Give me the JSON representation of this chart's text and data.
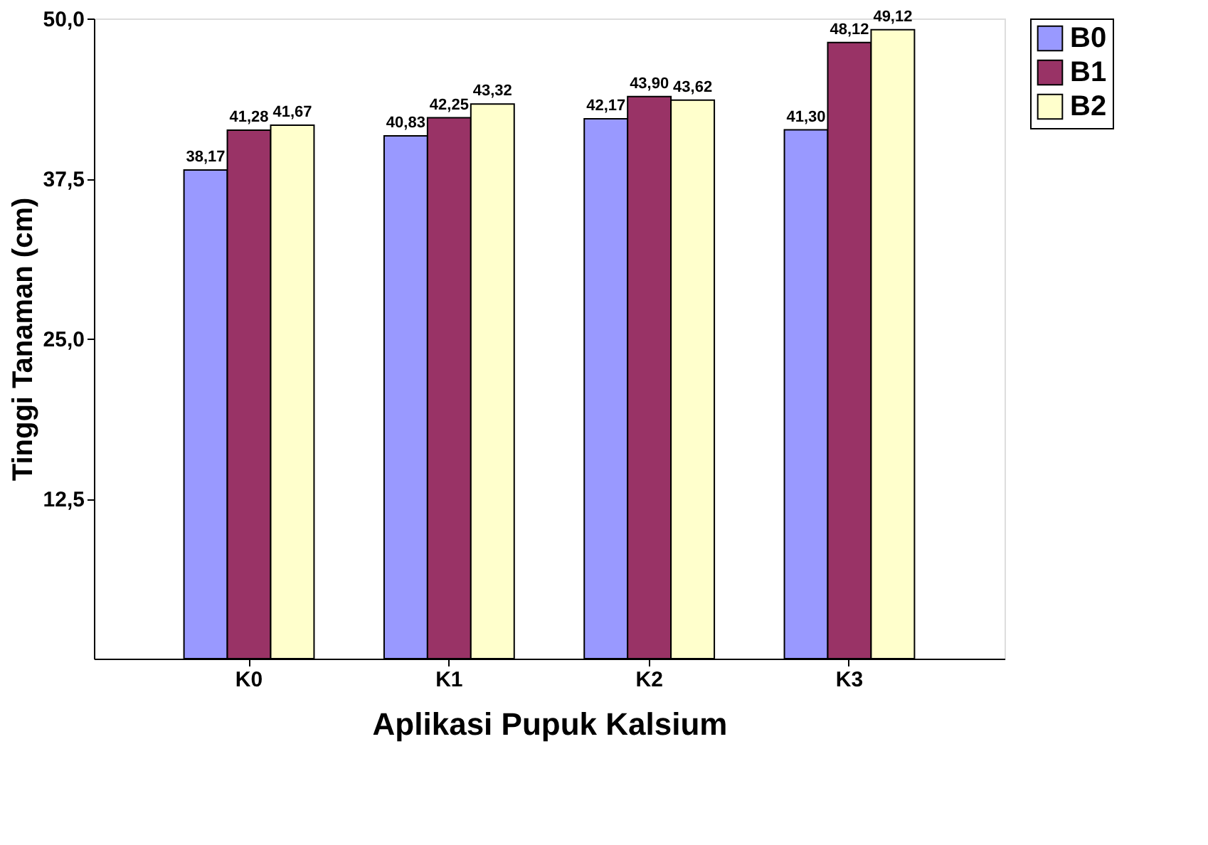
{
  "chart_data": {
    "type": "bar",
    "xlabel": "Aplikasi Pupuk Kalsium",
    "ylabel": "Tinggi Tanaman (cm)",
    "categories": [
      "K0",
      "K1",
      "K2",
      "K3"
    ],
    "series": [
      {
        "name": "B0",
        "color": "#9999ff",
        "values": [
          38.17,
          40.83,
          42.17,
          41.3
        ],
        "value_labels": [
          "38,17",
          "40,83",
          "42,17",
          "41,30"
        ]
      },
      {
        "name": "B1",
        "color": "#993366",
        "values": [
          41.28,
          42.25,
          43.9,
          48.12
        ],
        "value_labels": [
          "41,28",
          "42,25",
          "43,90",
          "48,12"
        ]
      },
      {
        "name": "B2",
        "color": "#ffffcc",
        "values": [
          41.67,
          43.32,
          43.62,
          49.12
        ],
        "value_labels": [
          "41,67",
          "43,32",
          "43,62",
          "49,12"
        ]
      }
    ],
    "ylim": [
      0,
      50
    ],
    "yticks": [
      {
        "value": 12.5,
        "label": "12,5"
      },
      {
        "value": 25,
        "label": "25,0"
      },
      {
        "value": 37.5,
        "label": "37,5"
      },
      {
        "value": 50,
        "label": "50,0"
      }
    ],
    "grid": false,
    "legend": "right"
  }
}
